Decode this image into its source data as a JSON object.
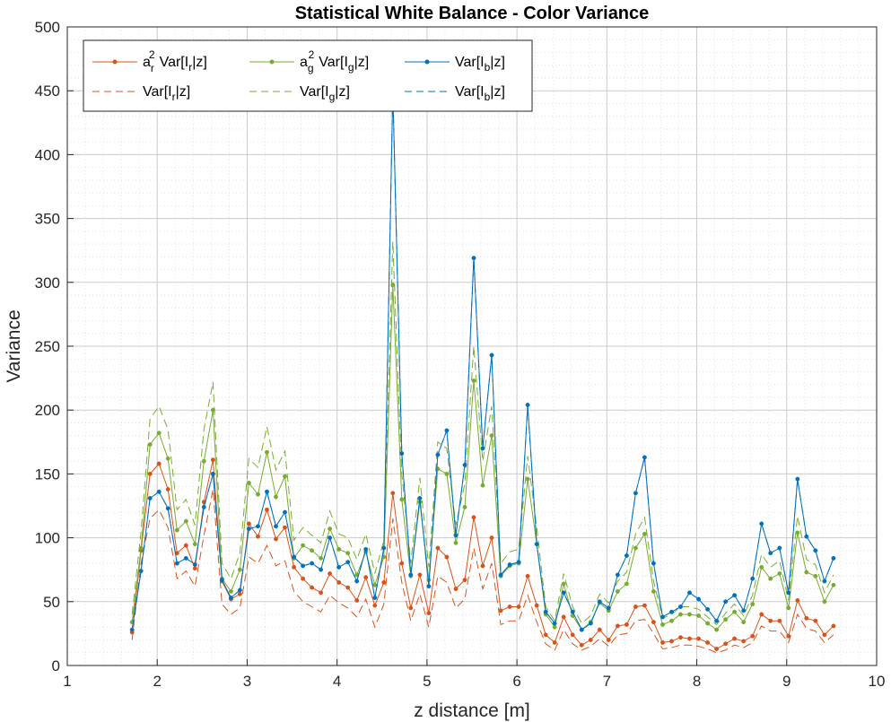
{
  "chart_data": {
    "type": "line",
    "title": "Statistical White Balance - Color Variance",
    "xlabel": "z distance [m]",
    "ylabel": "Variance",
    "xlim": [
      1,
      10
    ],
    "ylim": [
      0,
      500
    ],
    "xticks": [
      1,
      2,
      3,
      4,
      5,
      6,
      7,
      8,
      9,
      10
    ],
    "yticks": [
      0,
      50,
      100,
      150,
      200,
      250,
      300,
      350,
      400,
      450,
      500
    ],
    "grid": true,
    "minor_grid": true,
    "legend_position": "top-left",
    "x": [
      1.72,
      1.82,
      1.92,
      2.02,
      2.12,
      2.22,
      2.32,
      2.42,
      2.52,
      2.62,
      2.72,
      2.82,
      2.92,
      3.02,
      3.12,
      3.22,
      3.32,
      3.42,
      3.52,
      3.62,
      3.72,
      3.82,
      3.92,
      4.02,
      4.12,
      4.22,
      4.32,
      4.42,
      4.52,
      4.62,
      4.72,
      4.82,
      4.92,
      5.02,
      5.12,
      5.22,
      5.32,
      5.42,
      5.52,
      5.62,
      5.72,
      5.82,
      5.92,
      6.02,
      6.12,
      6.22,
      6.32,
      6.42,
      6.52,
      6.62,
      6.72,
      6.82,
      6.92,
      7.02,
      7.12,
      7.22,
      7.32,
      7.42,
      7.52,
      7.62,
      7.72,
      7.82,
      7.92,
      8.02,
      8.12,
      8.22,
      8.32,
      8.42,
      8.52,
      8.62,
      8.72,
      8.82,
      8.92,
      9.02,
      9.12,
      9.22,
      9.32,
      9.42,
      9.52
    ],
    "series": [
      {
        "name": "a_r^2 Var[I_r|z]",
        "color": "#D95319",
        "style": "solid-marker",
        "values": [
          26,
          90,
          150,
          158,
          138,
          88,
          94,
          76,
          128,
          161,
          66,
          52,
          56,
          111,
          101,
          122,
          99,
          108,
          77,
          68,
          61,
          57,
          72,
          65,
          61,
          51,
          69,
          47,
          65,
          135,
          80,
          45,
          71,
          41,
          92,
          85,
          60,
          67,
          116,
          78,
          100,
          43,
          46,
          46,
          70,
          47,
          24,
          18,
          38,
          24,
          16,
          20,
          28,
          20,
          31,
          32,
          46,
          47,
          34,
          18,
          19,
          22,
          21,
          21,
          18,
          13,
          17,
          21,
          19,
          23,
          40,
          35,
          35,
          23,
          51,
          37,
          35,
          24,
          31
        ]
      },
      {
        "name": "a_g^2 Var[I_g|z]",
        "color": "#77AC30",
        "style": "solid-marker",
        "values": [
          34,
          92,
          173,
          182,
          162,
          106,
          113,
          95,
          160,
          200,
          68,
          58,
          75,
          143,
          134,
          167,
          132,
          148,
          84,
          94,
          90,
          84,
          107,
          91,
          88,
          71,
          89,
          63,
          85,
          298,
          130,
          70,
          128,
          67,
          154,
          150,
          96,
          124,
          223,
          141,
          180,
          70,
          78,
          80,
          146,
          95,
          40,
          30,
          64,
          39,
          28,
          34,
          49,
          43,
          58,
          64,
          92,
          103,
          58,
          32,
          35,
          40,
          40,
          39,
          33,
          28,
          36,
          42,
          34,
          48,
          77,
          68,
          72,
          45,
          104,
          73,
          70,
          50,
          63
        ]
      },
      {
        "name": "Var[I_b|z]",
        "color": "#0072BD",
        "style": "solid-marker",
        "values": [
          28,
          74,
          131,
          136,
          123,
          80,
          84,
          79,
          124,
          150,
          67,
          53,
          59,
          107,
          109,
          136,
          109,
          120,
          85,
          78,
          80,
          75,
          100,
          77,
          81,
          66,
          91,
          53,
          92,
          450,
          166,
          71,
          131,
          62,
          165,
          184,
          102,
          157,
          319,
          170,
          243,
          71,
          79,
          81,
          204,
          95,
          42,
          33,
          57,
          42,
          28,
          33,
          50,
          45,
          71,
          86,
          135,
          163,
          80,
          38,
          42,
          46,
          57,
          52,
          44,
          35,
          50,
          55,
          43,
          68,
          111,
          88,
          92,
          57,
          146,
          101,
          90,
          66,
          84
        ]
      },
      {
        "name": "Var[I_r|z]",
        "color": "#D95319",
        "style": "dashed",
        "values": [
          20,
          80,
          115,
          122,
          108,
          68,
          74,
          62,
          102,
          138,
          48,
          40,
          45,
          85,
          80,
          94,
          78,
          82,
          58,
          50,
          46,
          42,
          55,
          49,
          45,
          38,
          52,
          30,
          48,
          115,
          65,
          35,
          56,
          30,
          70,
          65,
          45,
          52,
          92,
          60,
          80,
          32,
          35,
          35,
          55,
          34,
          17,
          12,
          28,
          17,
          12,
          15,
          21,
          15,
          24,
          25,
          35,
          36,
          25,
          13,
          14,
          16,
          16,
          15,
          13,
          10,
          12,
          16,
          14,
          18,
          31,
          27,
          27,
          18,
          40,
          29,
          27,
          18,
          24
        ]
      },
      {
        "name": "Var[I_g|z]",
        "color": "#77AC30",
        "style": "dashed",
        "values": [
          40,
          105,
          193,
          203,
          185,
          122,
          130,
          110,
          185,
          222,
          80,
          68,
          88,
          162,
          155,
          187,
          153,
          168,
          98,
          108,
          102,
          96,
          121,
          103,
          100,
          83,
          103,
          72,
          98,
          332,
          150,
          80,
          147,
          77,
          175,
          170,
          110,
          142,
          250,
          160,
          203,
          80,
          89,
          91,
          164,
          108,
          46,
          35,
          72,
          46,
          33,
          39,
          56,
          49,
          66,
          73,
          103,
          116,
          66,
          37,
          40,
          46,
          46,
          44,
          38,
          32,
          41,
          48,
          39,
          55,
          87,
          77,
          82,
          51,
          117,
          83,
          79,
          57,
          71
        ]
      },
      {
        "name": "Var[I_b|z]",
        "color": "#0072BD",
        "style": "dashed",
        "values": [
          28,
          74,
          131,
          136,
          123,
          80,
          84,
          79,
          124,
          150,
          67,
          53,
          59,
          107,
          109,
          136,
          109,
          120,
          85,
          78,
          80,
          75,
          100,
          77,
          81,
          66,
          91,
          53,
          92,
          450,
          166,
          71,
          131,
          62,
          165,
          184,
          102,
          157,
          319,
          170,
          243,
          71,
          79,
          81,
          204,
          95,
          42,
          33,
          57,
          42,
          28,
          33,
          50,
          45,
          71,
          86,
          135,
          163,
          80,
          38,
          42,
          46,
          57,
          52,
          44,
          35,
          50,
          55,
          43,
          68,
          111,
          88,
          92,
          57,
          146,
          101,
          90,
          66,
          84
        ]
      }
    ]
  },
  "legend": {
    "entries": [
      {
        "id": "leg-ar",
        "color": "#D95319",
        "style": "solid-marker",
        "main": "a",
        "sup": "2",
        "sub": "r",
        "rest": "Var[I",
        "rsub": "r",
        "tail": "|z]"
      },
      {
        "id": "leg-ag",
        "color": "#77AC30",
        "style": "solid-marker",
        "main": "a",
        "sup": "2",
        "sub": "g",
        "rest": "Var[I",
        "rsub": "g",
        "tail": "|z]"
      },
      {
        "id": "leg-b",
        "color": "#0072BD",
        "style": "solid-marker",
        "main": "",
        "sup": "",
        "sub": "",
        "rest": "Var[I",
        "rsub": "b",
        "tail": "|z]"
      },
      {
        "id": "leg-r-d",
        "color": "#D95319",
        "style": "dashed",
        "main": "",
        "sup": "",
        "sub": "",
        "rest": "Var[I",
        "rsub": "r",
        "tail": "|z]"
      },
      {
        "id": "leg-g-d",
        "color": "#77AC30",
        "style": "dashed",
        "main": "",
        "sup": "",
        "sub": "",
        "rest": "Var[I",
        "rsub": "g",
        "tail": "|z]"
      },
      {
        "id": "leg-b-d",
        "color": "#0072BD",
        "style": "dashed",
        "main": "",
        "sup": "",
        "sub": "",
        "rest": "Var[I",
        "rsub": "b",
        "tail": "|z]"
      }
    ]
  }
}
